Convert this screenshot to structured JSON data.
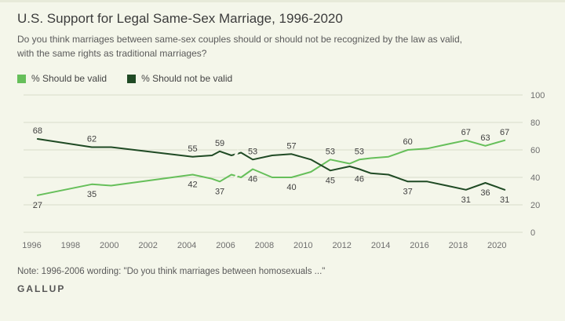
{
  "page": {
    "background": "#f4f6ea"
  },
  "header": {
    "title": "U.S. Support for Legal Same-Sex Marriage, 1996-2020",
    "subtitle": "Do you think marriages between same-sex couples should or should not be recognized by the law as valid,\nwith the same rights as traditional marriages?"
  },
  "legend": [
    {
      "label": "% Should be valid",
      "color": "#66bf5a"
    },
    {
      "label": "% Should not be valid",
      "color": "#1f4a24"
    }
  ],
  "footer": {
    "note": "Note: 1996-2006 wording: \"Do you think marriages between homosexuals ...\"",
    "brand": "GALLUP"
  },
  "chart_data": {
    "type": "line",
    "title": "U.S. Support for Legal Same-Sex Marriage, 1996-2020",
    "x_ticks": [
      1996,
      1998,
      2000,
      2002,
      2004,
      2006,
      2008,
      2010,
      2012,
      2014,
      2016,
      2018,
      2020
    ],
    "y_ticks": [
      0,
      20,
      40,
      60,
      80,
      100
    ],
    "x_range": [
      1995.9,
      2021.0
    ],
    "y_range": [
      0,
      100
    ],
    "grid": true,
    "legend_position": "top-left",
    "wording_break_x": 2006.55,
    "series": [
      {
        "name": "% Should be valid",
        "color": "#66bf5a",
        "points": [
          {
            "x": 1996.3,
            "y": 27,
            "label": "27",
            "label_pos": "below"
          },
          {
            "x": 1999.1,
            "y": 35,
            "label": "35",
            "label_pos": "below"
          },
          {
            "x": 2000.1,
            "y": 34
          },
          {
            "x": 2004.3,
            "y": 42,
            "label": "42",
            "label_pos": "below"
          },
          {
            "x": 2005.3,
            "y": 39
          },
          {
            "x": 2005.7,
            "y": 37,
            "label": "37",
            "label_pos": "below"
          },
          {
            "x": 2006.3,
            "y": 42
          },
          {
            "x": 2006.8,
            "y": 40
          },
          {
            "x": 2007.4,
            "y": 46,
            "label": "46",
            "label_pos": "below"
          },
          {
            "x": 2008.4,
            "y": 40
          },
          {
            "x": 2009.4,
            "y": 40,
            "label": "40",
            "label_pos": "below"
          },
          {
            "x": 2010.4,
            "y": 44
          },
          {
            "x": 2011.4,
            "y": 53,
            "label": "53",
            "label_pos": "above"
          },
          {
            "x": 2012.4,
            "y": 50
          },
          {
            "x": 2012.9,
            "y": 53,
            "label": "53",
            "label_pos": "above"
          },
          {
            "x": 2013.5,
            "y": 54
          },
          {
            "x": 2014.4,
            "y": 55
          },
          {
            "x": 2015.4,
            "y": 60,
            "label": "60",
            "label_pos": "above"
          },
          {
            "x": 2016.4,
            "y": 61
          },
          {
            "x": 2017.4,
            "y": 64
          },
          {
            "x": 2018.4,
            "y": 67,
            "label": "67",
            "label_pos": "above"
          },
          {
            "x": 2019.4,
            "y": 63,
            "label": "63",
            "label_pos": "above"
          },
          {
            "x": 2020.4,
            "y": 67,
            "label": "67",
            "label_pos": "above"
          }
        ]
      },
      {
        "name": "% Should not be valid",
        "color": "#1f4a24",
        "points": [
          {
            "x": 1996.3,
            "y": 68,
            "label": "68",
            "label_pos": "above"
          },
          {
            "x": 1999.1,
            "y": 62,
            "label": "62",
            "label_pos": "above"
          },
          {
            "x": 2000.1,
            "y": 62
          },
          {
            "x": 2004.3,
            "y": 55,
            "label": "55",
            "label_pos": "above"
          },
          {
            "x": 2005.3,
            "y": 56
          },
          {
            "x": 2005.7,
            "y": 59,
            "label": "59",
            "label_pos": "above"
          },
          {
            "x": 2006.3,
            "y": 56
          },
          {
            "x": 2006.8,
            "y": 58
          },
          {
            "x": 2007.4,
            "y": 53,
            "label": "53",
            "label_pos": "above"
          },
          {
            "x": 2008.4,
            "y": 56
          },
          {
            "x": 2009.4,
            "y": 57,
            "label": "57",
            "label_pos": "above"
          },
          {
            "x": 2010.4,
            "y": 53
          },
          {
            "x": 2011.4,
            "y": 45,
            "label": "45",
            "label_pos": "below"
          },
          {
            "x": 2012.4,
            "y": 48
          },
          {
            "x": 2012.9,
            "y": 46,
            "label": "46",
            "label_pos": "below"
          },
          {
            "x": 2013.5,
            "y": 43
          },
          {
            "x": 2014.4,
            "y": 42
          },
          {
            "x": 2015.4,
            "y": 37,
            "label": "37",
            "label_pos": "below"
          },
          {
            "x": 2016.4,
            "y": 37
          },
          {
            "x": 2017.4,
            "y": 34
          },
          {
            "x": 2018.4,
            "y": 31,
            "label": "31",
            "label_pos": "below"
          },
          {
            "x": 2019.4,
            "y": 36,
            "label": "36",
            "label_pos": "below"
          },
          {
            "x": 2020.4,
            "y": 31,
            "label": "31",
            "label_pos": "below"
          }
        ]
      }
    ]
  }
}
